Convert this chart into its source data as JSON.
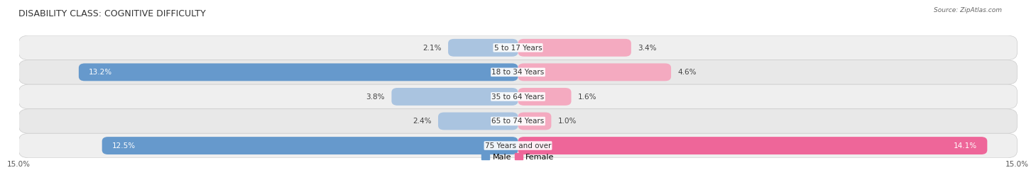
{
  "title": "DISABILITY CLASS: COGNITIVE DIFFICULTY",
  "source": "Source: ZipAtlas.com",
  "categories": [
    "5 to 17 Years",
    "18 to 34 Years",
    "35 to 64 Years",
    "65 to 74 Years",
    "75 Years and over"
  ],
  "male_values": [
    2.1,
    13.2,
    3.8,
    2.4,
    12.5
  ],
  "female_values": [
    3.4,
    4.6,
    1.6,
    1.0,
    14.1
  ],
  "max_val": 15.0,
  "male_color_dark": "#6699cc",
  "male_color_light": "#aac4e0",
  "female_color_dark": "#ee6699",
  "female_color_light": "#f4aac0",
  "row_bg_light": "#f0f0f0",
  "row_bg_dark": "#e2e2e2",
  "title_fontsize": 9,
  "label_fontsize": 7.5,
  "value_fontsize": 7.5,
  "tick_fontsize": 7.5,
  "legend_fontsize": 8,
  "large_threshold": 5.0
}
